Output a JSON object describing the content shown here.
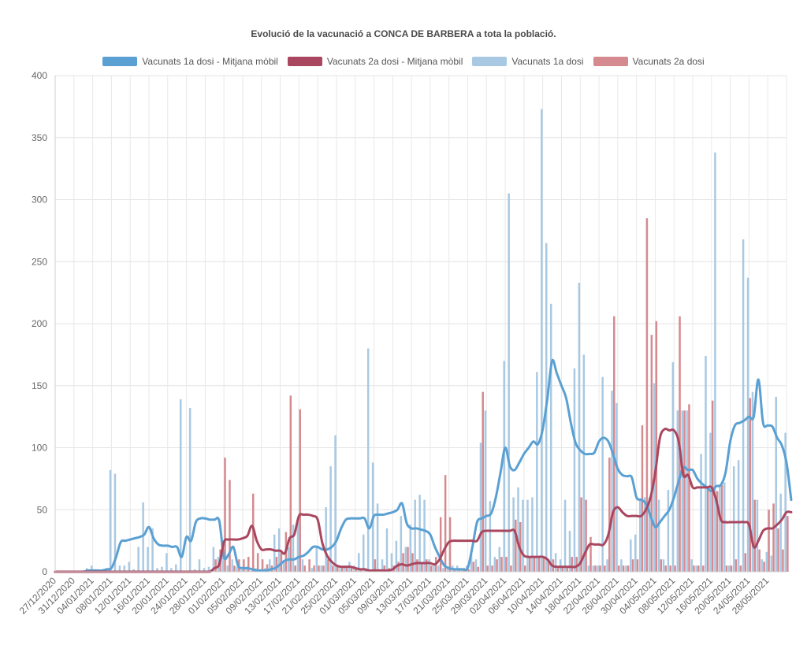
{
  "chart_data": {
    "type": "bar",
    "title": "Evolució de la vacunació a CONCA DE BARBERA a tota la població.",
    "ylim": [
      0,
      400
    ],
    "yticks": [
      0,
      50,
      100,
      150,
      200,
      250,
      300,
      350,
      400
    ],
    "x_start": "27/12/2020",
    "x_end": "31/05/2021",
    "xtick_labels": [
      "27/12/2020",
      "31/12/2020",
      "04/01/2021",
      "08/01/2021",
      "12/01/2021",
      "16/01/2021",
      "20/01/2021",
      "24/01/2021",
      "28/01/2021",
      "01/02/2021",
      "05/02/2021",
      "09/02/2021",
      "13/02/2021",
      "17/02/2021",
      "21/02/2021",
      "25/02/2021",
      "01/03/2021",
      "05/03/2021",
      "09/03/2021",
      "13/03/2021",
      "17/03/2021",
      "21/03/2021",
      "25/03/2021",
      "29/03/2021",
      "02/04/2021",
      "06/04/2021",
      "10/04/2021",
      "14/04/2021",
      "18/04/2021",
      "22/04/2021",
      "26/04/2021",
      "30/04/2021",
      "04/05/2021",
      "08/05/2021",
      "12/05/2021",
      "16/05/2021",
      "20/05/2021",
      "24/05/2021",
      "28/05/2021"
    ],
    "legend": [
      {
        "name": "Vacunats 1a dosi - Mitjana mòbil",
        "color": "#5aa0d2"
      },
      {
        "name": "Vacunats 2a dosi - Mitjana mòbil",
        "color": "#a8475f"
      },
      {
        "name": "Vacunats 1a dosi",
        "color": "#a9c9e3"
      },
      {
        "name": "Vacunats 2a dosi",
        "color": "#d58a90"
      }
    ],
    "series": [
      {
        "name": "Vacunats 1a dosi",
        "kind": "bar",
        "color": "#a9c9e3",
        "values": [
          0,
          0,
          0,
          0,
          0,
          0,
          1,
          3,
          5,
          0,
          0,
          2,
          82,
          79,
          5,
          5,
          8,
          2,
          20,
          56,
          20,
          35,
          3,
          4,
          15,
          3,
          6,
          139,
          0,
          132,
          2,
          10,
          3,
          4,
          20,
          12,
          21,
          5,
          10,
          4,
          2,
          3,
          1,
          3,
          2,
          3,
          10,
          30,
          35,
          8,
          20,
          38,
          40,
          10,
          0,
          3,
          20,
          5,
          52,
          85,
          110,
          3,
          5,
          8,
          5,
          15,
          30,
          180,
          88,
          55,
          10,
          35,
          15,
          25,
          45,
          20,
          38,
          58,
          62,
          58,
          10,
          5,
          5,
          3,
          3,
          5,
          5,
          3,
          5,
          15,
          10,
          104,
          130,
          57,
          12,
          20,
          170,
          305,
          60,
          68,
          58,
          58,
          60,
          161,
          373,
          265,
          216,
          15,
          10,
          58,
          33,
          164,
          233,
          175,
          5,
          5,
          5,
          157,
          10,
          146,
          136,
          10,
          5,
          26,
          30,
          58,
          60,
          60,
          152,
          58,
          10,
          66,
          169,
          130,
          130,
          130,
          10,
          5,
          95,
          174,
          112,
          338,
          70,
          72,
          5,
          85,
          90,
          268,
          237,
          145,
          58,
          10,
          16,
          13,
          141,
          63,
          112
        ]
      },
      {
        "name": "Vacunats 2a dosi",
        "kind": "bar",
        "color": "#d58a90",
        "values": [
          0,
          0,
          0,
          0,
          0,
          0,
          0,
          0,
          0,
          0,
          0,
          0,
          0,
          0,
          0,
          0,
          0,
          0,
          0,
          0,
          0,
          0,
          0,
          0,
          0,
          0,
          0,
          0,
          0,
          0,
          0,
          0,
          0,
          0,
          10,
          18,
          92,
          74,
          5,
          10,
          10,
          12,
          63,
          15,
          10,
          6,
          5,
          12,
          15,
          32,
          142,
          5,
          131,
          5,
          10,
          5,
          5,
          5,
          10,
          5,
          5,
          3,
          3,
          3,
          2,
          1,
          1,
          1,
          10,
          2,
          5,
          3,
          5,
          8,
          15,
          20,
          15,
          10,
          6,
          10,
          5,
          12,
          44,
          78,
          44,
          3,
          3,
          3,
          2,
          8,
          4,
          145,
          5,
          5,
          10,
          12,
          12,
          5,
          42,
          40,
          5,
          12,
          12,
          12,
          12,
          10,
          10,
          3,
          3,
          3,
          12,
          12,
          60,
          58,
          28,
          5,
          5,
          5,
          92,
          206,
          5,
          5,
          5,
          10,
          10,
          118,
          285,
          191,
          202,
          10,
          5,
          5,
          5,
          206,
          130,
          135,
          5,
          5,
          5,
          68,
          138,
          65,
          70,
          5,
          5,
          10,
          5,
          15,
          140,
          58,
          18,
          8,
          50,
          55,
          35,
          18,
          45
        ]
      },
      {
        "name": "Vacunats 1a dosi - Mitjana mòbil",
        "kind": "line",
        "color": "#5aa0d2",
        "values": [
          0,
          0,
          0,
          0,
          0,
          0,
          0,
          1,
          1,
          1,
          1,
          2,
          3,
          12,
          24,
          25,
          26,
          27,
          28,
          30,
          36,
          27,
          22,
          21,
          21,
          20,
          20,
          12,
          28,
          25,
          40,
          43,
          43,
          42,
          42,
          41,
          12,
          14,
          20,
          5,
          3,
          3,
          2,
          1,
          1,
          1,
          2,
          3,
          6,
          9,
          10,
          10,
          12,
          13,
          16,
          20,
          20,
          18,
          18,
          20,
          25,
          35,
          42,
          43,
          43,
          43,
          43,
          35,
          45,
          46,
          46,
          47,
          48,
          50,
          55,
          39,
          35,
          35,
          34,
          33,
          30,
          20,
          12,
          5,
          3,
          2,
          2,
          2,
          3,
          20,
          40,
          43,
          45,
          47,
          60,
          80,
          100,
          85,
          82,
          88,
          95,
          100,
          105,
          103,
          115,
          140,
          170,
          160,
          150,
          140,
          120,
          104,
          98,
          95,
          95,
          96,
          105,
          108,
          105,
          95,
          83,
          78,
          77,
          76,
          60,
          58,
          55,
          45,
          36,
          40,
          45,
          50,
          60,
          73,
          84,
          82,
          82,
          75,
          71,
          68,
          65,
          69,
          70,
          80,
          105,
          118,
          120,
          122,
          125,
          125,
          155,
          120,
          118,
          117,
          108,
          102,
          88,
          58
        ]
      },
      {
        "name": "Vacunats 2a dosi - Mitjana mòbil",
        "kind": "line",
        "color": "#a8475f",
        "values": [
          0,
          0,
          0,
          0,
          0,
          0,
          0,
          0,
          0,
          0,
          0,
          0,
          0,
          0,
          0,
          0,
          0,
          0,
          0,
          0,
          0,
          0,
          0,
          0,
          0,
          0,
          0,
          0,
          0,
          0,
          0,
          0,
          0,
          0,
          3,
          6,
          24,
          26,
          26,
          26,
          27,
          29,
          37,
          25,
          18,
          18,
          18,
          17,
          17,
          15,
          27,
          30,
          45,
          46,
          46,
          45,
          42,
          23,
          13,
          8,
          5,
          4,
          4,
          4,
          3,
          2,
          2,
          1,
          1,
          1,
          1,
          1,
          2,
          5,
          6,
          5,
          6,
          7,
          7,
          7,
          7,
          6,
          10,
          18,
          24,
          25,
          25,
          25,
          25,
          25,
          25,
          32,
          33,
          33,
          33,
          33,
          33,
          33,
          33,
          20,
          13,
          12,
          12,
          12,
          12,
          10,
          5,
          4,
          4,
          4,
          4,
          4,
          7,
          15,
          22,
          22,
          22,
          22,
          30,
          48,
          52,
          48,
          45,
          45,
          45,
          45,
          50,
          60,
          80,
          108,
          115,
          114,
          114,
          105,
          78,
          78,
          68,
          68,
          68,
          68,
          68,
          58,
          42,
          40,
          40,
          40,
          40,
          40,
          38,
          20,
          25,
          33,
          35,
          35,
          38,
          42,
          48,
          48
        ]
      }
    ]
  }
}
